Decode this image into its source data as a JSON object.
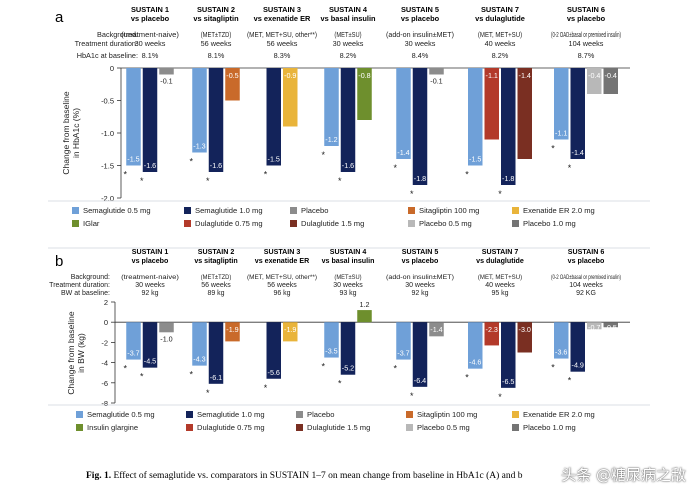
{
  "palette": {
    "sema05": "#6FA0D8",
    "sema10": "#13235A",
    "placebo": "#8C8C8C",
    "sitagliptin": "#C96A2A",
    "exenatide": "#E9B43A",
    "iglar": "#6E8F2D",
    "dulaglutide075": "#B33A2A",
    "dulaglutide15": "#7A2F22",
    "placebo05": "#B8B8B8",
    "placebo10": "#747474"
  },
  "chart_data": [
    {
      "type": "bar",
      "panel_label": "a",
      "ylabel": "Change from baseline in HbA1c (%)",
      "ylim": [
        -2.0,
        0
      ],
      "yticks": [
        "0",
        "-0.5",
        "-1.0",
        "-1.5",
        "-2.0"
      ],
      "row_labels": [
        "Background:",
        "Treatment duration:",
        "HbA1c at baseline:"
      ],
      "groups": [
        {
          "title": "SUSTAIN 1",
          "subtitle": "vs placebo",
          "background": "(treatment-naive)",
          "duration": "30 weeks",
          "baseline": "8.1%",
          "bars": [
            {
              "series": "sema05",
              "value": -1.5,
              "label": "-1.5",
              "star": true
            },
            {
              "series": "sema10",
              "value": -1.6,
              "label": "-1.6",
              "star": true
            },
            {
              "series": "placebo",
              "value": -0.1,
              "label": "-0.1",
              "star": false
            }
          ]
        },
        {
          "title": "SUSTAIN 2",
          "subtitle": "vs sitagliptin",
          "background": "(MET±TZD)",
          "duration": "56 weeks",
          "baseline": "8.1%",
          "bars": [
            {
              "series": "sema05",
              "value": -1.3,
              "label": "-1.3",
              "star": true
            },
            {
              "series": "sema10",
              "value": -1.6,
              "label": "-1.6",
              "star": true
            },
            {
              "series": "sitagliptin",
              "value": -0.5,
              "label": "-0.5",
              "star": false
            }
          ]
        },
        {
          "title": "SUSTAIN 3",
          "subtitle": "vs exenatide ER",
          "background": "(MET, MET+SU, other**)",
          "duration": "56 weeks",
          "baseline": "8.3%",
          "bars": [
            {
              "series": "sema10",
              "value": -1.5,
              "label": "-1.5",
              "star": true
            },
            {
              "series": "exenatide",
              "value": -0.9,
              "label": "-0.9",
              "star": false
            }
          ]
        },
        {
          "title": "SUSTAIN 4",
          "subtitle": "vs basal insulin",
          "background": "(MET±SU)",
          "duration": "30 weeks",
          "baseline": "8.2%",
          "bars": [
            {
              "series": "sema05",
              "value": -1.2,
              "label": "-1.2",
              "star": true
            },
            {
              "series": "sema10",
              "value": -1.6,
              "label": "-1.6",
              "star": true
            },
            {
              "series": "iglar",
              "value": -0.8,
              "label": "-0.8",
              "star": false
            }
          ]
        },
        {
          "title": "SUSTAIN 5",
          "subtitle": "vs placebo",
          "background": "(add-on insulin±MET)",
          "duration": "30 weeks",
          "baseline": "8.4%",
          "bars": [
            {
              "series": "sema05",
              "value": -1.4,
              "label": "-1.4",
              "star": true
            },
            {
              "series": "sema10",
              "value": -1.8,
              "label": "-1.8",
              "star": true
            },
            {
              "series": "placebo",
              "value": -0.1,
              "label": "-0.1",
              "star": false
            }
          ]
        },
        {
          "title": "SUSTAIN 7",
          "subtitle": "vs dulaglutide",
          "background": "(MET, MET+SU)",
          "duration": "40 weeks",
          "baseline": "8.2%",
          "bars": [
            {
              "series": "sema05",
              "value": -1.5,
              "label": "-1.5",
              "star": true
            },
            {
              "series": "dulaglutide075",
              "value": -1.1,
              "label": "-1.1",
              "star": false
            },
            {
              "series": "sema10",
              "value": -1.8,
              "label": "-1.8",
              "star": true
            },
            {
              "series": "dulaglutide15",
              "value": -1.4,
              "label": "-1.4",
              "star": false
            }
          ]
        },
        {
          "title": "SUSTAIN 6",
          "subtitle": "vs placebo",
          "background": "(0-2 OAD±basal or premixed insulin)",
          "duration": "104 weeks",
          "baseline": "8.7%",
          "bars": [
            {
              "series": "sema05",
              "value": -1.1,
              "label": "-1.1",
              "star": true
            },
            {
              "series": "sema10",
              "value": -1.4,
              "label": "-1.4",
              "star": true
            },
            {
              "series": "placebo05",
              "value": -0.4,
              "label": "-0.4",
              "star": false
            },
            {
              "series": "placebo10",
              "value": -0.4,
              "label": "-0.4",
              "star": false
            }
          ]
        }
      ],
      "legend": [
        {
          "series": "sema05",
          "label": "Semaglutide 0.5 mg"
        },
        {
          "series": "sema10",
          "label": "Semaglutide 1.0 mg"
        },
        {
          "series": "placebo",
          "label": "Placebo"
        },
        {
          "series": "sitagliptin",
          "label": "Sitagliptin 100 mg"
        },
        {
          "series": "exenatide",
          "label": "Exenatide ER 2.0 mg"
        },
        {
          "series": "iglar",
          "label": "IGlar"
        },
        {
          "series": "dulaglutide075",
          "label": "Dulaglutide 0.75 mg"
        },
        {
          "series": "dulaglutide15",
          "label": "Dulaglutide 1.5 mg"
        },
        {
          "series": "placebo05",
          "label": "Placebo 0.5 mg"
        },
        {
          "series": "placebo10",
          "label": "Placebo 1.0 mg"
        }
      ]
    },
    {
      "type": "bar",
      "panel_label": "b",
      "ylabel": "Change from baseline in BW (kg)",
      "ylim": [
        -8,
        2
      ],
      "yticks": [
        "2",
        "0",
        "-2",
        "-4",
        "-6",
        "-8"
      ],
      "row_labels": [
        "Background:",
        "Treatment duration:",
        "BW at baseline:"
      ],
      "groups": [
        {
          "title": "SUSTAIN 1",
          "subtitle": "vs placebo",
          "background": "(treatment-naive)",
          "duration": "30 weeks",
          "baseline": "92 kg",
          "bars": [
            {
              "series": "sema05",
              "value": -3.7,
              "label": "-3.7",
              "star": true
            },
            {
              "series": "sema10",
              "value": -4.5,
              "label": "-4.5",
              "star": true
            },
            {
              "series": "placebo",
              "value": -1.0,
              "label": "-1.0",
              "star": false
            }
          ]
        },
        {
          "title": "SUSTAIN 2",
          "subtitle": "vs sitagliptin",
          "background": "(MET±TZD)",
          "duration": "56 weeks",
          "baseline": "89 kg",
          "bars": [
            {
              "series": "sema05",
              "value": -4.3,
              "label": "-4.3",
              "star": true
            },
            {
              "series": "sema10",
              "value": -6.1,
              "label": "-6.1",
              "star": true
            },
            {
              "series": "sitagliptin",
              "value": -1.9,
              "label": "-1.9",
              "star": false
            }
          ]
        },
        {
          "title": "SUSTAIN 3",
          "subtitle": "vs exenatide ER",
          "background": "(MET, MET+SU, other**)",
          "duration": "56 weeks",
          "baseline": "96 kg",
          "bars": [
            {
              "series": "sema10",
              "value": -5.6,
              "label": "-5.6",
              "star": true
            },
            {
              "series": "exenatide",
              "value": -1.9,
              "label": "-1.9",
              "star": false
            }
          ]
        },
        {
          "title": "SUSTAIN 4",
          "subtitle": "vs basal insulin",
          "background": "(MET±SU)",
          "duration": "30 weeks",
          "baseline": "93 kg",
          "bars": [
            {
              "series": "sema05",
              "value": -3.5,
              "label": "-3.5",
              "star": true
            },
            {
              "series": "sema10",
              "value": -5.2,
              "label": "-5.2",
              "star": true
            },
            {
              "series": "iglar",
              "value": 1.2,
              "label": "1.2",
              "star": false
            }
          ]
        },
        {
          "title": "SUSTAIN 5",
          "subtitle": "vs placebo",
          "background": "(add-on insulin±MET)",
          "duration": "30 weeks",
          "baseline": "92 kg",
          "bars": [
            {
              "series": "sema05",
              "value": -3.7,
              "label": "-3.7",
              "star": true
            },
            {
              "series": "sema10",
              "value": -6.4,
              "label": "-6.4",
              "star": true
            },
            {
              "series": "placebo",
              "value": -1.4,
              "label": "-1.4",
              "star": false
            }
          ]
        },
        {
          "title": "SUSTAIN 7",
          "subtitle": "vs dulaglutide",
          "background": "(MET, MET+SU)",
          "duration": "40 weeks",
          "baseline": "95 kg",
          "bars": [
            {
              "series": "sema05",
              "value": -4.6,
              "label": "-4.6",
              "star": true
            },
            {
              "series": "dulaglutide075",
              "value": -2.3,
              "label": "-2.3",
              "star": false
            },
            {
              "series": "sema10",
              "value": -6.5,
              "label": "-6.5",
              "star": true
            },
            {
              "series": "dulaglutide15",
              "value": -3.0,
              "label": "-3.0",
              "star": false
            }
          ]
        },
        {
          "title": "SUSTAIN 6",
          "subtitle": "vs placebo",
          "background": "(0-2 OAD±basal or premixed insulin)",
          "duration": "104 weeks",
          "baseline": "92 KG",
          "bars": [
            {
              "series": "sema05",
              "value": -3.6,
              "label": "-3.6",
              "star": true
            },
            {
              "series": "sema10",
              "value": -4.9,
              "label": "-4.9",
              "star": true
            },
            {
              "series": "placebo05",
              "value": -0.7,
              "label": "-0.7",
              "star": false
            },
            {
              "series": "placebo10",
              "value": -0.5,
              "label": "-0.5",
              "star": false
            }
          ]
        }
      ],
      "legend": [
        {
          "series": "sema05",
          "label": "Semaglutide 0.5 mg"
        },
        {
          "series": "sema10",
          "label": "Semaglutide 1.0 mg"
        },
        {
          "series": "placebo",
          "label": "Placebo"
        },
        {
          "series": "sitagliptin",
          "label": "Sitagliptin 100 mg"
        },
        {
          "series": "exenatide",
          "label": "Exenatide ER 2.0 mg"
        },
        {
          "series": "iglar",
          "label": "Insulin glargine"
        },
        {
          "series": "dulaglutide075",
          "label": "Dulaglutide 0.75 mg"
        },
        {
          "series": "dulaglutide15",
          "label": "Dulaglutide 1.5 mg"
        },
        {
          "series": "placebo05",
          "label": "Placebo 0.5 mg"
        },
        {
          "series": "placebo10",
          "label": "Placebo 1.0 mg"
        }
      ]
    }
  ],
  "caption": {
    "label": "Fig. 1.",
    "text": "Effect of semaglutide vs. comparators in SUSTAIN 1–7 on mean change from baseline in HbA1c (A) and b"
  },
  "watermark": "头条 @糖尿病之敌"
}
